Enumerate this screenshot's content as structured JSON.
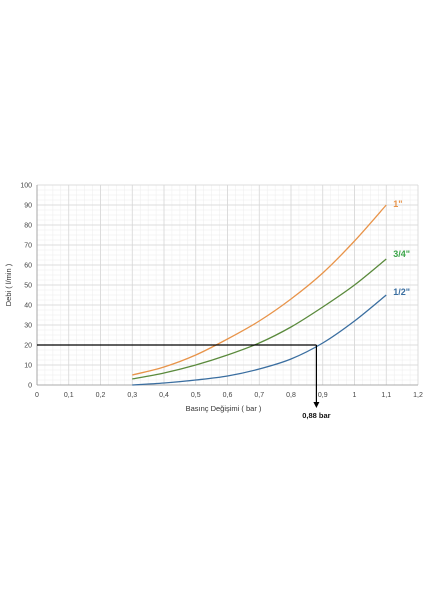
{
  "chart_data": {
    "type": "line",
    "xlabel": "Basınç Değişimi ( bar )",
    "ylabel": "Debi ( l/min )",
    "xlim": [
      0,
      1.2
    ],
    "ylim": [
      0,
      100
    ],
    "x_ticks": [
      "0",
      "0,1",
      "0,2",
      "0,3",
      "0,4",
      "0,5",
      "0,6",
      "0,7",
      "0,8",
      "0,9",
      "1",
      "1,1",
      "1,2"
    ],
    "y_ticks": [
      "0",
      "10",
      "20",
      "30",
      "40",
      "50",
      "60",
      "70",
      "80",
      "90",
      "100"
    ],
    "grid": true,
    "series": [
      {
        "name": "1\"",
        "color": "#e8944a",
        "x": [
          0.3,
          0.4,
          0.5,
          0.6,
          0.7,
          0.8,
          0.9,
          1.0,
          1.1
        ],
        "y": [
          5,
          9,
          15,
          23,
          32,
          43,
          56,
          72,
          90
        ]
      },
      {
        "name": "3/4\"",
        "color": "#5a8a3c",
        "x": [
          0.3,
          0.4,
          0.5,
          0.6,
          0.7,
          0.8,
          0.9,
          1.0,
          1.1
        ],
        "y": [
          3,
          6,
          10,
          15,
          21,
          29,
          39,
          50,
          63
        ]
      },
      {
        "name": "1/2\"",
        "color": "#3a6ea0",
        "x": [
          0.3,
          0.4,
          0.5,
          0.6,
          0.7,
          0.8,
          0.9,
          1.0,
          1.1
        ],
        "y": [
          0,
          1,
          2.5,
          4.5,
          8,
          13,
          21,
          32,
          45
        ]
      }
    ],
    "label_colors": {
      "1\"": "#e8944a",
      "3/4\"": "#3aa548",
      "1/2\"": "#3a6ea0"
    },
    "reference": {
      "x": 0.88,
      "y": 20,
      "label": "0,88 bar",
      "color": "#000000"
    }
  }
}
